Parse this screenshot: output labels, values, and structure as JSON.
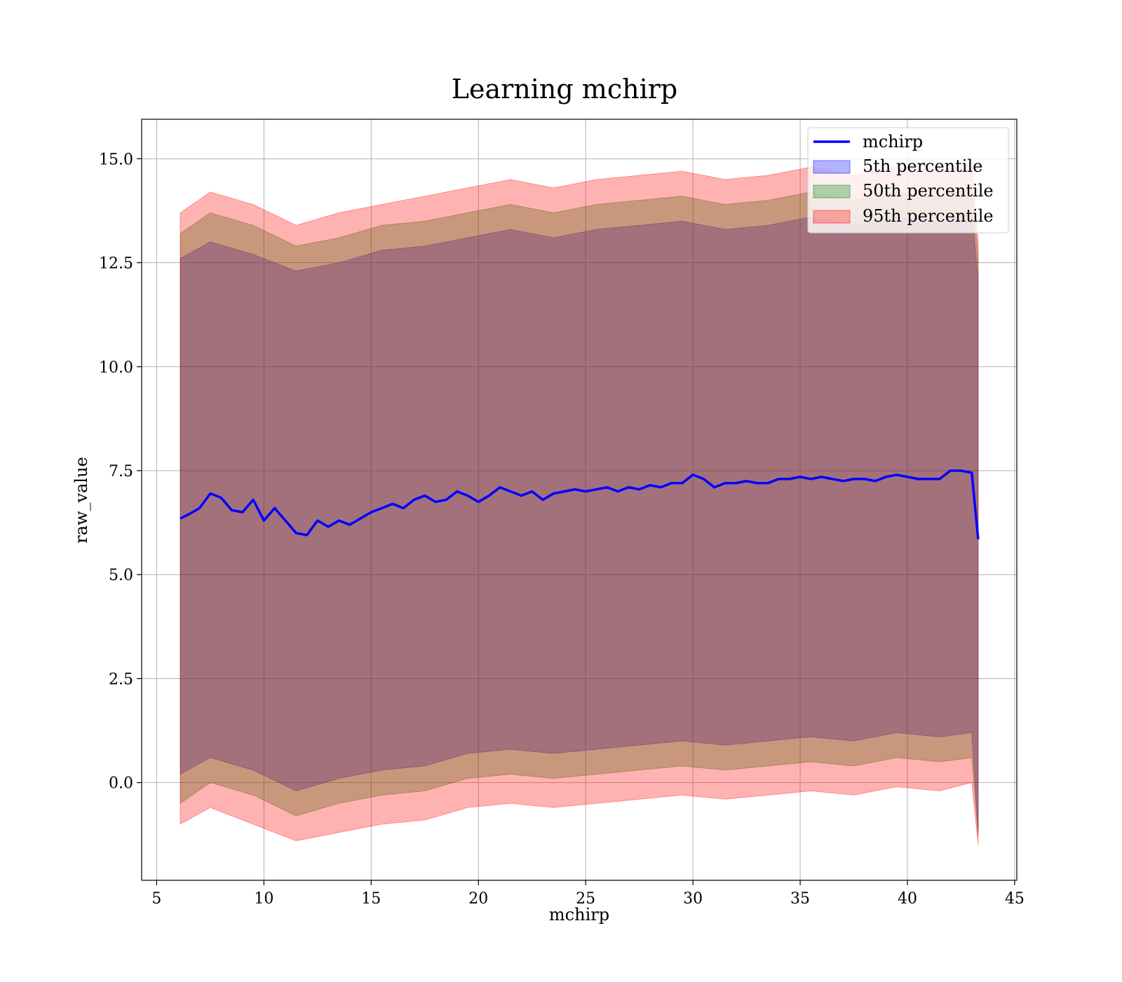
{
  "chart_data": {
    "type": "area",
    "title": "Learning mchirp",
    "xlabel": "mchirp",
    "ylabel": "raw_value",
    "xlim": [
      4.3,
      45.1
    ],
    "ylim": [
      -2.35,
      15.95
    ],
    "grid": true,
    "legend_position": "top-right",
    "xticks": [
      5,
      10,
      15,
      20,
      25,
      30,
      35,
      40,
      45
    ],
    "xtick_labels": [
      "5",
      "10",
      "15",
      "20",
      "25",
      "30",
      "35",
      "40",
      "45"
    ],
    "yticks": [
      0,
      2.5,
      5,
      7.5,
      10,
      12.5,
      15
    ],
    "ytick_labels": [
      "0.0",
      "2.5",
      "5.0",
      "7.5",
      "10.0",
      "12.5",
      "15.0"
    ],
    "line": {
      "name": "mchirp",
      "color": "#0000ff",
      "x": [
        6.1,
        6.5,
        7.0,
        7.5,
        8.0,
        8.5,
        9.0,
        9.5,
        10.0,
        10.5,
        11.0,
        11.5,
        12.0,
        12.5,
        13.0,
        13.5,
        14.0,
        14.5,
        15.0,
        15.5,
        16.0,
        16.5,
        17.0,
        17.5,
        18.0,
        18.5,
        19.0,
        19.5,
        20.0,
        20.5,
        21.0,
        21.5,
        22.0,
        22.5,
        23.0,
        23.5,
        24.0,
        24.5,
        25.0,
        25.5,
        26.0,
        26.5,
        27.0,
        27.5,
        28.0,
        28.5,
        29.0,
        29.5,
        30.0,
        30.5,
        31.0,
        31.5,
        32.0,
        32.5,
        33.0,
        33.5,
        34.0,
        34.5,
        35.0,
        35.5,
        36.0,
        36.5,
        37.0,
        37.5,
        38.0,
        38.5,
        39.0,
        39.5,
        40.0,
        40.5,
        41.0,
        41.5,
        42.0,
        42.5,
        43.0,
        43.3
      ],
      "y": [
        6.35,
        6.45,
        6.6,
        6.95,
        6.85,
        6.55,
        6.5,
        6.8,
        6.3,
        6.6,
        6.3,
        6.0,
        5.95,
        6.3,
        6.15,
        6.3,
        6.2,
        6.35,
        6.5,
        6.6,
        6.7,
        6.6,
        6.8,
        6.9,
        6.75,
        6.8,
        7.0,
        6.9,
        6.75,
        6.9,
        7.1,
        7.0,
        6.9,
        7.0,
        6.8,
        6.95,
        7.0,
        7.05,
        7.0,
        7.05,
        7.1,
        7.0,
        7.1,
        7.05,
        7.15,
        7.1,
        7.2,
        7.2,
        7.4,
        7.3,
        7.1,
        7.2,
        7.2,
        7.25,
        7.2,
        7.2,
        7.3,
        7.3,
        7.35,
        7.3,
        7.35,
        7.3,
        7.25,
        7.3,
        7.3,
        7.25,
        7.35,
        7.4,
        7.35,
        7.3,
        7.3,
        7.3,
        7.5,
        7.5,
        7.45,
        5.85
      ]
    },
    "bands": [
      {
        "name": "5th percentile",
        "color": "#0000ff",
        "x": [
          6.1,
          7.5,
          9.5,
          11.5,
          13.5,
          15.5,
          17.5,
          19.5,
          21.5,
          23.5,
          25.5,
          27.5,
          29.5,
          31.5,
          33.5,
          35.5,
          37.5,
          39.5,
          41.5,
          43.0,
          43.3
        ],
        "lower": [
          0.2,
          0.6,
          0.3,
          -0.2,
          0.1,
          0.3,
          0.4,
          0.7,
          0.8,
          0.7,
          0.8,
          0.9,
          1.0,
          0.9,
          1.0,
          1.1,
          1.0,
          1.2,
          1.1,
          1.2,
          -1.2
        ],
        "upper": [
          12.6,
          13.0,
          12.7,
          12.3,
          12.5,
          12.8,
          12.9,
          13.1,
          13.3,
          13.1,
          13.3,
          13.4,
          13.5,
          13.3,
          13.4,
          13.6,
          13.4,
          13.6,
          13.5,
          13.7,
          12.1
        ]
      },
      {
        "name": "50th percentile",
        "color": "#008000",
        "x": [
          6.1,
          7.5,
          9.5,
          11.5,
          13.5,
          15.5,
          17.5,
          19.5,
          21.5,
          23.5,
          25.5,
          27.5,
          29.5,
          31.5,
          33.5,
          35.5,
          37.5,
          39.5,
          41.5,
          43.0,
          43.3
        ],
        "lower": [
          -0.5,
          0.0,
          -0.3,
          -0.8,
          -0.5,
          -0.3,
          -0.2,
          0.1,
          0.2,
          0.1,
          0.2,
          0.3,
          0.4,
          0.3,
          0.4,
          0.5,
          0.4,
          0.6,
          0.5,
          0.6,
          -1.3
        ],
        "upper": [
          13.2,
          13.7,
          13.4,
          12.9,
          13.1,
          13.4,
          13.5,
          13.7,
          13.9,
          13.7,
          13.9,
          14.0,
          14.1,
          13.9,
          14.0,
          14.2,
          14.0,
          14.2,
          14.1,
          14.3,
          12.6
        ]
      },
      {
        "name": "95th percentile",
        "color": "#ff0000",
        "x": [
          6.1,
          7.5,
          9.5,
          11.5,
          13.5,
          15.5,
          17.5,
          19.5,
          21.5,
          23.5,
          25.5,
          27.5,
          29.5,
          31.5,
          33.5,
          35.5,
          37.5,
          39.5,
          41.5,
          43.0,
          43.3
        ],
        "lower": [
          -1.0,
          -0.6,
          -1.0,
          -1.4,
          -1.2,
          -1.0,
          -0.9,
          -0.6,
          -0.5,
          -0.6,
          -0.5,
          -0.4,
          -0.3,
          -0.4,
          -0.3,
          -0.2,
          -0.3,
          -0.1,
          -0.2,
          0.0,
          -1.5
        ],
        "upper": [
          13.7,
          14.2,
          13.9,
          13.4,
          13.7,
          13.9,
          14.1,
          14.3,
          14.5,
          14.3,
          14.5,
          14.6,
          14.7,
          14.5,
          14.6,
          14.8,
          14.6,
          14.8,
          14.7,
          14.9,
          13.0
        ]
      }
    ],
    "legend": [
      "mchirp",
      "5th percentile",
      "50th percentile",
      "95th percentile"
    ]
  }
}
